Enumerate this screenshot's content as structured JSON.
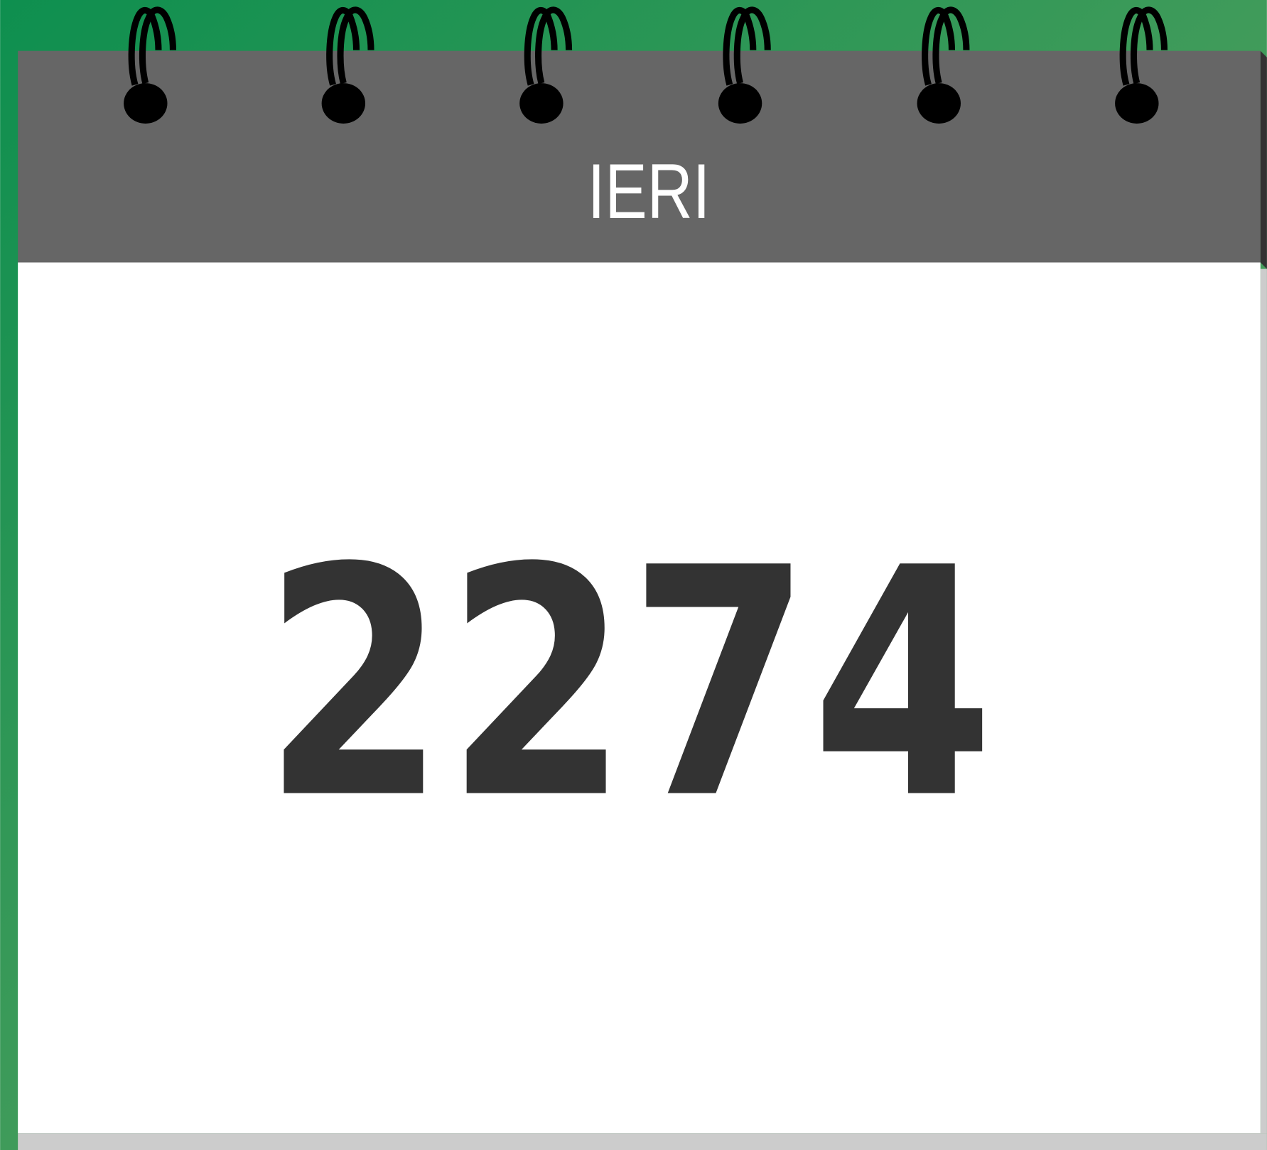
{
  "calendar": {
    "label": "IERI",
    "value": "2274"
  }
}
